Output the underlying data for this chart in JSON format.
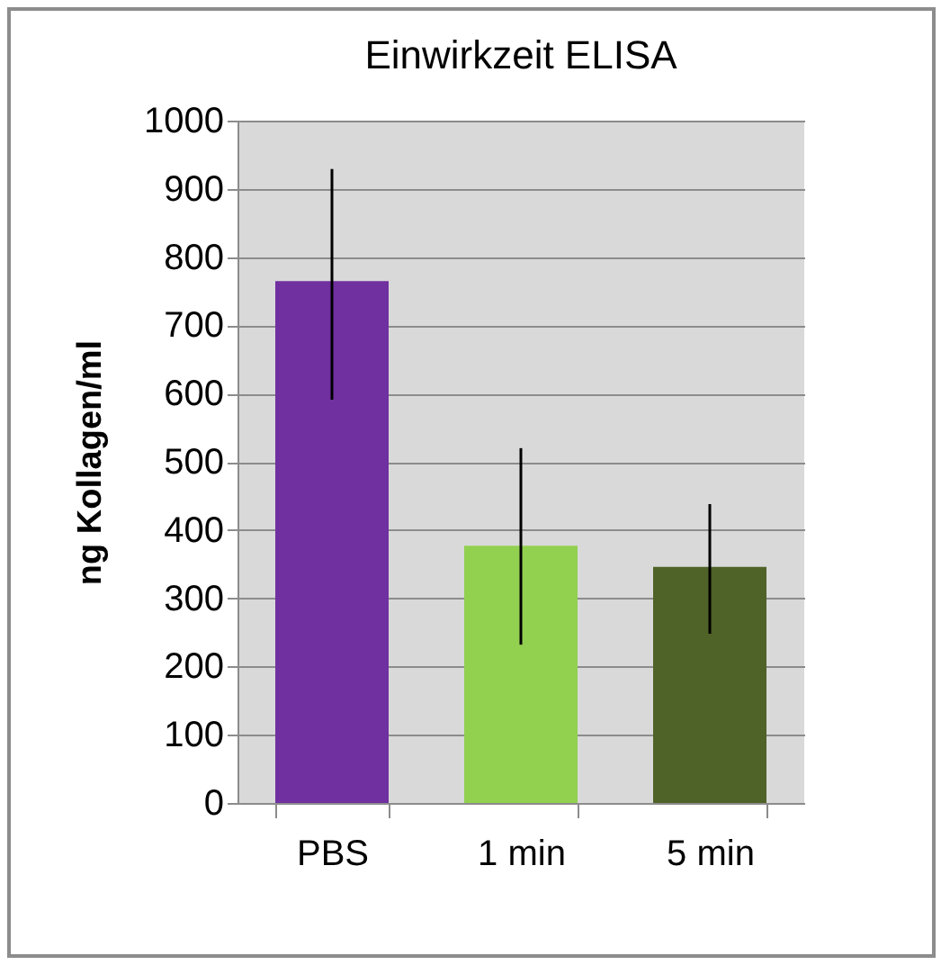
{
  "chart_data": {
    "type": "bar",
    "title": "Einwirkzeit ELISA",
    "ylabel": "ng Kollagen/ml",
    "categories": [
      "PBS",
      "1 min",
      "5 min"
    ],
    "values": [
      765,
      377,
      346
    ],
    "colors": [
      "#7030a0",
      "#92d050",
      "#4f6228"
    ],
    "errors": [
      [
        591,
        929
      ],
      [
        232,
        520
      ],
      [
        248,
        438
      ]
    ],
    "ylim": [
      0,
      1000
    ],
    "yticks": [
      0,
      100,
      200,
      300,
      400,
      500,
      600,
      700,
      800,
      900,
      1000
    ],
    "grid": "y"
  }
}
